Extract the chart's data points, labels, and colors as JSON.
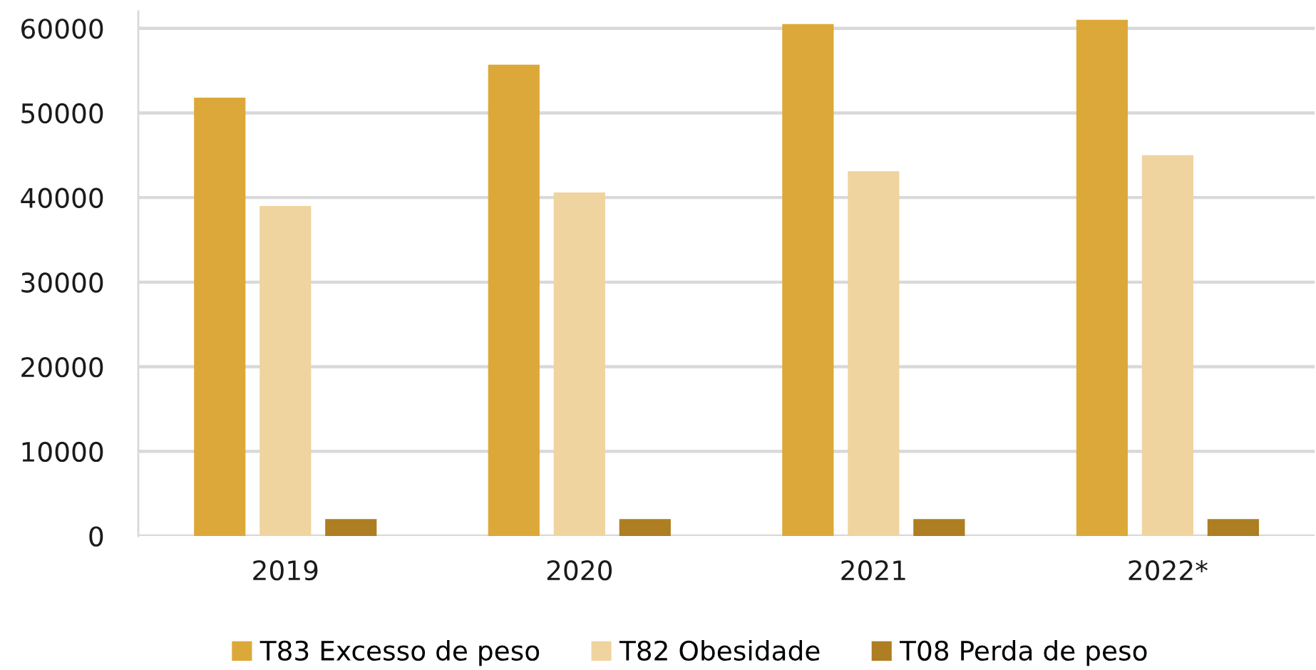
{
  "chart_data": {
    "type": "bar",
    "categories": [
      "2019",
      "2020",
      "2021",
      "2022*"
    ],
    "series": [
      {
        "name": "T83 Excesso de peso",
        "color": "#dda83a",
        "values": [
          51800,
          55700,
          60500,
          61000
        ]
      },
      {
        "name": "T82 Obesidade",
        "color": "#efd4a0",
        "values": [
          39000,
          40600,
          43100,
          45000
        ]
      },
      {
        "name": "T08 Perda de peso",
        "color": "#ad7e22",
        "values": [
          2000,
          2000,
          2000,
          2000
        ]
      }
    ],
    "ylim": [
      0,
      62000
    ],
    "yticks": [
      0,
      10000,
      20000,
      30000,
      40000,
      50000,
      60000
    ],
    "grid": "y",
    "legend": "bottom"
  }
}
